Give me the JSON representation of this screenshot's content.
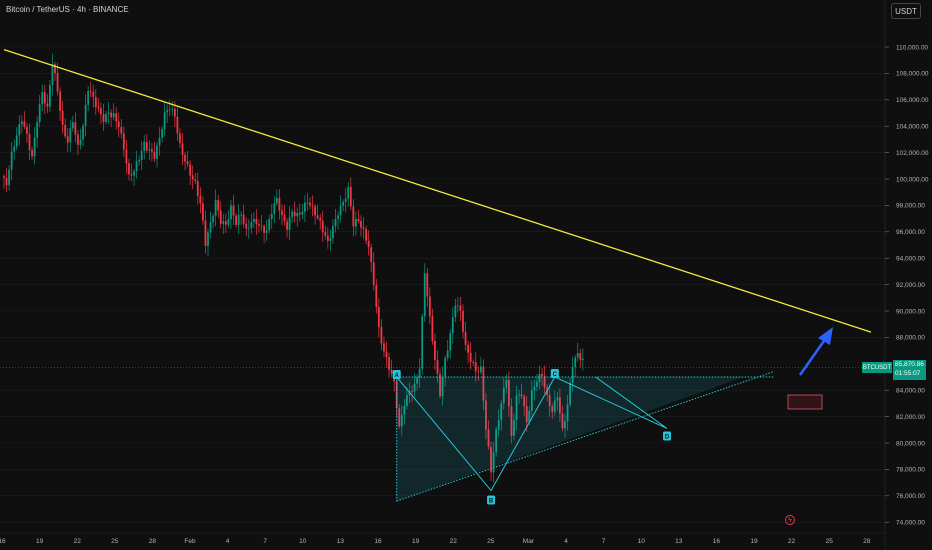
{
  "header": {
    "title": "Bitcoin / TetherUS · 4h · BINANCE",
    "unit_button": "USDT"
  },
  "y_axis": {
    "ticks": [
      "110,000.00",
      "108,000.00",
      "106,000.00",
      "104,000.00",
      "102,000.00",
      "100,000.00",
      "98,000.00",
      "96,000.00",
      "94,000.00",
      "92,000.00",
      "90,000.00",
      "88,000.00",
      "84,000.00",
      "82,000.00",
      "80,000.00",
      "78,000.00",
      "76,000.00",
      "74,000.00"
    ]
  },
  "x_axis": {
    "ticks": [
      "16",
      "19",
      "22",
      "25",
      "28",
      "Feb",
      "4",
      "7",
      "10",
      "13",
      "16",
      "19",
      "22",
      "25",
      "Mar",
      "4",
      "7",
      "10",
      "13",
      "16",
      "19",
      "22",
      "25",
      "28"
    ]
  },
  "price_label": {
    "symbol": "BTCUSDT",
    "price": "85,870.86",
    "countdown": "01:55:07"
  },
  "pattern_points": [
    "A",
    "B",
    "C",
    "D"
  ],
  "colors": {
    "up": "#089981",
    "down": "#f23645",
    "trendline": "#f5e63c",
    "pattern": "#26c6da",
    "arrow": "#2962ff"
  },
  "chart_data": {
    "type": "candlestick",
    "ylim": [
      73500,
      111500
    ],
    "close_series": [
      [
        0,
        100200
      ],
      [
        2,
        99500
      ],
      [
        4,
        101500
      ],
      [
        6,
        103000
      ],
      [
        8,
        104500
      ],
      [
        10,
        103500
      ],
      [
        12,
        102000
      ],
      [
        14,
        104800
      ],
      [
        16,
        106500
      ],
      [
        18,
        105000
      ],
      [
        20,
        108500
      ],
      [
        22,
        106500
      ],
      [
        24,
        104000
      ],
      [
        26,
        103200
      ],
      [
        28,
        104800
      ],
      [
        30,
        102500
      ],
      [
        32,
        103800
      ],
      [
        34,
        106500
      ],
      [
        36,
        105800
      ],
      [
        38,
        105200
      ],
      [
        40,
        104800
      ],
      [
        42,
        105400
      ],
      [
        44,
        105000
      ],
      [
        46,
        104000
      ],
      [
        48,
        102000
      ],
      [
        50,
        99800
      ],
      [
        52,
        100500
      ],
      [
        54,
        101800
      ],
      [
        56,
        103000
      ],
      [
        58,
        102500
      ],
      [
        60,
        101800
      ],
      [
        62,
        102800
      ],
      [
        64,
        104500
      ],
      [
        66,
        105200
      ],
      [
        68,
        104800
      ],
      [
        70,
        102800
      ],
      [
        72,
        101800
      ],
      [
        74,
        100600
      ],
      [
        76,
        99500
      ],
      [
        78,
        97800
      ],
      [
        80,
        94800
      ],
      [
        82,
        96500
      ],
      [
        84,
        98500
      ],
      [
        86,
        97200
      ],
      [
        88,
        96800
      ],
      [
        90,
        97800
      ],
      [
        92,
        96400
      ],
      [
        94,
        97000
      ],
      [
        96,
        95800
      ],
      [
        98,
        96900
      ],
      [
        100,
        97100
      ],
      [
        102,
        96600
      ],
      [
        104,
        96200
      ],
      [
        106,
        97400
      ],
      [
        108,
        98100
      ],
      [
        110,
        96800
      ],
      [
        112,
        96300
      ],
      [
        114,
        97800
      ],
      [
        116,
        97600
      ],
      [
        118,
        97900
      ],
      [
        120,
        98300
      ],
      [
        122,
        97400
      ],
      [
        124,
        96700
      ],
      [
        126,
        96000
      ],
      [
        128,
        95300
      ],
      [
        130,
        96700
      ],
      [
        132,
        97800
      ],
      [
        134,
        98300
      ],
      [
        136,
        99000
      ],
      [
        138,
        96200
      ],
      [
        140,
        96600
      ],
      [
        142,
        96000
      ],
      [
        144,
        95200
      ],
      [
        146,
        92500
      ],
      [
        148,
        88800
      ],
      [
        150,
        86800
      ],
      [
        152,
        85400
      ],
      [
        154,
        84200
      ],
      [
        156,
        81000
      ],
      [
        158,
        83200
      ],
      [
        160,
        84300
      ],
      [
        162,
        84600
      ],
      [
        164,
        85800
      ],
      [
        166,
        92700
      ],
      [
        168,
        89000
      ],
      [
        170,
        86100
      ],
      [
        172,
        83800
      ],
      [
        174,
        86600
      ],
      [
        176,
        88600
      ],
      [
        178,
        90800
      ],
      [
        180,
        89800
      ],
      [
        182,
        86900
      ],
      [
        184,
        86000
      ],
      [
        186,
        85400
      ],
      [
        188,
        85800
      ],
      [
        190,
        81500
      ],
      [
        192,
        78200
      ],
      [
        194,
        80800
      ],
      [
        196,
        82700
      ],
      [
        198,
        84600
      ],
      [
        200,
        80200
      ],
      [
        202,
        83600
      ],
      [
        204,
        84100
      ],
      [
        206,
        81900
      ],
      [
        208,
        83900
      ],
      [
        210,
        84600
      ],
      [
        212,
        84800
      ],
      [
        214,
        83100
      ],
      [
        216,
        82400
      ],
      [
        218,
        83900
      ],
      [
        220,
        81300
      ],
      [
        222,
        83100
      ],
      [
        224,
        85900
      ],
      [
        226,
        86400
      ],
      [
        228,
        85870
      ]
    ],
    "trendline": {
      "from": {
        "index": 0,
        "price": 109800
      },
      "to": {
        "index": 340,
        "price": 88400
      }
    },
    "pattern": {
      "A": {
        "index": 154,
        "price": 85000
      },
      "B": {
        "index": 191,
        "price": 76400
      },
      "C": {
        "index": 216,
        "price": 85000
      },
      "D": {
        "index": 260,
        "price": 81100
      },
      "resistance": 85000,
      "support_from": {
        "index": 154,
        "price": 75600
      },
      "support_to": {
        "index": 290,
        "price": 84900
      }
    }
  }
}
